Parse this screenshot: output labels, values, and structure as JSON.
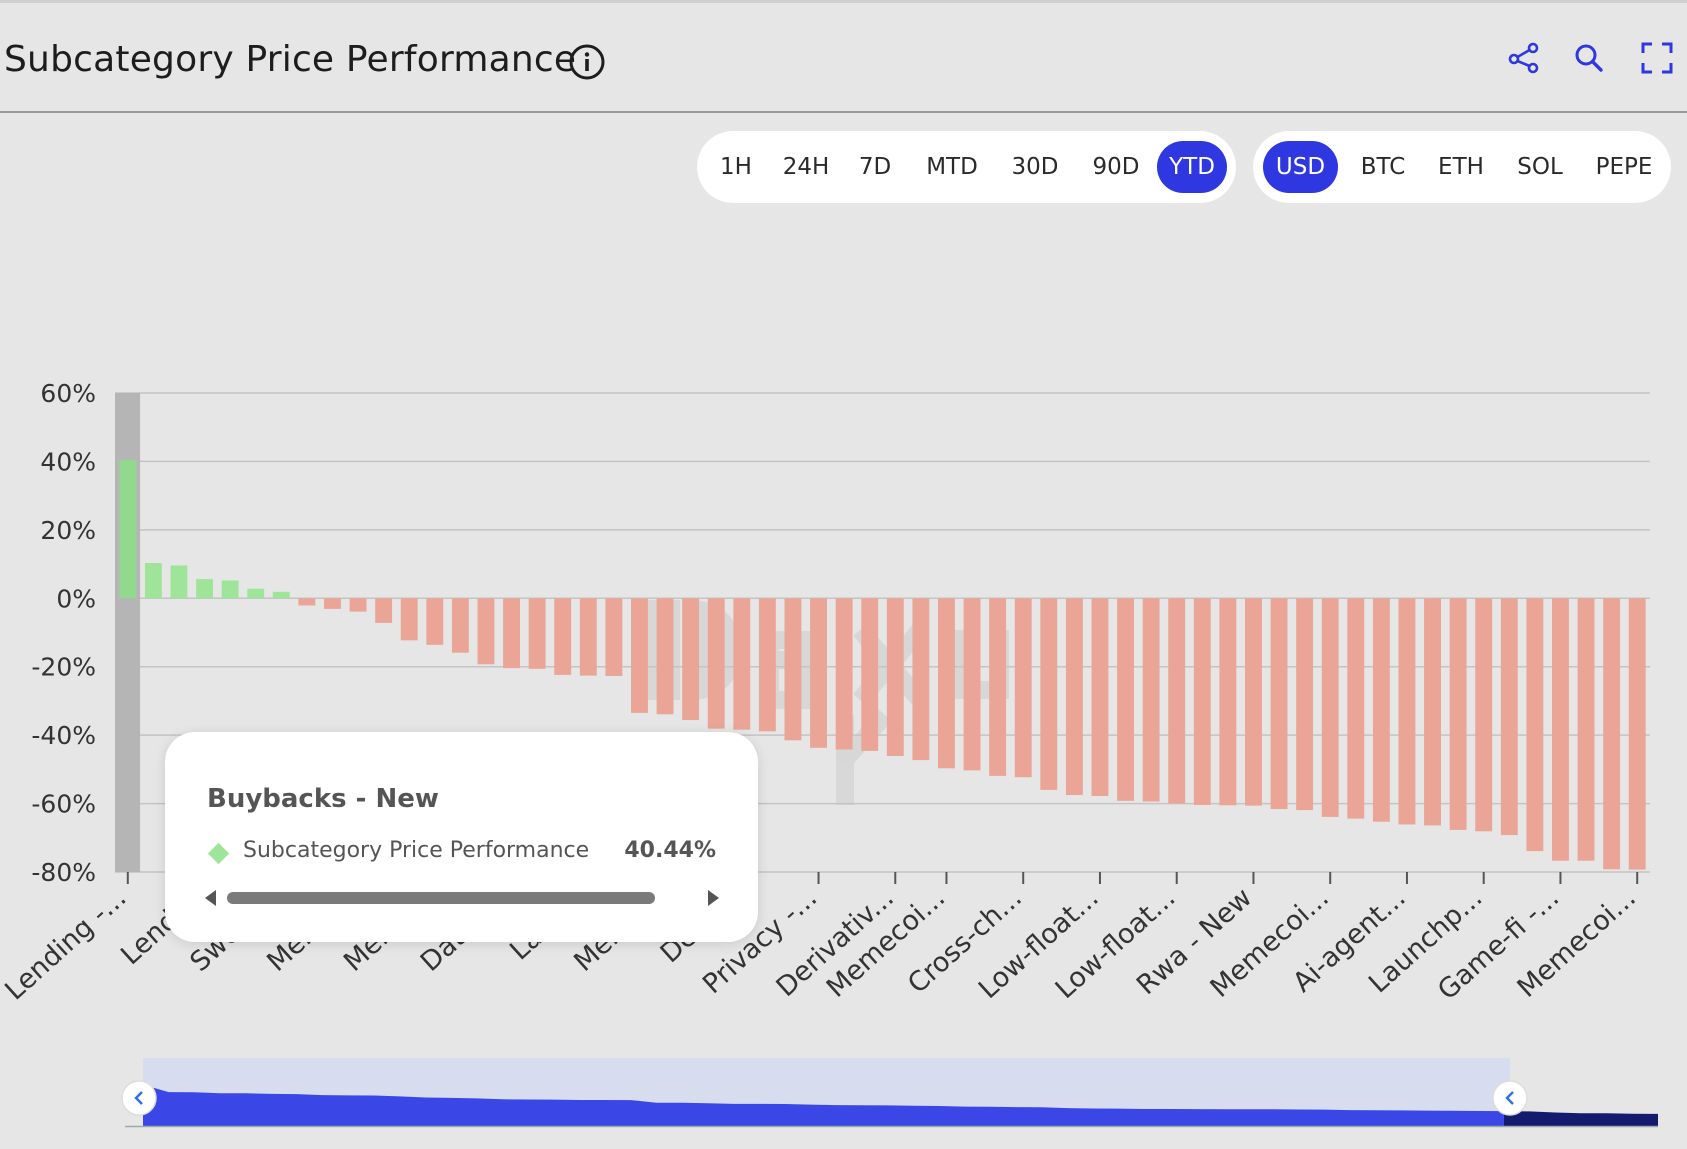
{
  "header": {
    "title": "Subcategory Price Performance",
    "icons": [
      "info-icon",
      "share-icon",
      "zoom-icon",
      "fullscreen-icon"
    ]
  },
  "time_filters": {
    "options": [
      "1H",
      "24H",
      "7D",
      "MTD",
      "30D",
      "90D",
      "YTD"
    ],
    "selected": "YTD"
  },
  "currency_filters": {
    "options": [
      "USD",
      "BTC",
      "ETH",
      "SOL",
      "PEPE"
    ],
    "selected": "USD"
  },
  "colors": {
    "accent": "#2f37e0",
    "positive": "#9ee59a",
    "negative": "#eaa596",
    "highlight": "#93d98d",
    "navigator": "#3a47e6",
    "navigator_dark": "#141a6e"
  },
  "tooltip": {
    "title": "Buybacks - New",
    "series_label": "Subcategory Price Performance",
    "value": "40.44%"
  },
  "chart_data": {
    "type": "bar",
    "ylim": [
      -80,
      60
    ],
    "yticks": [
      "60%",
      "40%",
      "20%",
      "0%",
      "-20%",
      "-40%",
      "-60%",
      "-80%"
    ],
    "grid": true,
    "highlighted_index": 0,
    "visible_labels": [
      "Lending -...",
      "Lendi...",
      "Sweet...",
      "Meme...",
      "Meme...",
      "Data -...",
      "Laun...",
      "Meme...",
      "Deriv...",
      "Privacy -...",
      "Derivativ...",
      "Memecoi...",
      "Cross-ch...",
      "Low-float...",
      "Low-float...",
      "Rwa - New",
      "Memecoi...",
      "Ai-agent...",
      "Launchp...",
      "Game-fi -...",
      "Memecoi..."
    ],
    "series": [
      {
        "name": "Subcategory Price Performance",
        "values": [
          40.44,
          10.3,
          9.6,
          5.6,
          5.2,
          2.8,
          1.9,
          -2.1,
          -3.1,
          -3.9,
          -7.2,
          -12.3,
          -13.6,
          -15.9,
          -19.3,
          -20.4,
          -20.6,
          -22.4,
          -22.6,
          -22.7,
          -33.5,
          -33.9,
          -35.6,
          -38.1,
          -38.4,
          -38.9,
          -41.5,
          -43.7,
          -44.2,
          -44.6,
          -46.1,
          -47.3,
          -49.7,
          -50.3,
          -51.9,
          -52.3,
          -56.0,
          -57.5,
          -57.8,
          -59.2,
          -59.4,
          -60.0,
          -60.4,
          -60.5,
          -60.6,
          -61.6,
          -61.9,
          -63.9,
          -64.4,
          -65.3,
          -66.1,
          -66.4,
          -67.7,
          -68.1,
          -69.2,
          -73.9,
          -76.7,
          -76.7,
          -79.2,
          -79.3
        ]
      }
    ]
  }
}
